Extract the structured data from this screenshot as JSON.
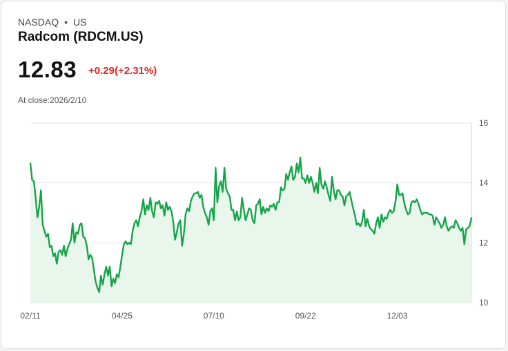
{
  "header": {
    "exchange": "NASDAQ",
    "separator": "•",
    "region": "US",
    "name": "Radcom (RDCM.US)",
    "price": "12.83",
    "change": "+0.29(+2.31%)",
    "close_label": "At close:2026/2/10"
  },
  "colors": {
    "line": "#16a34a",
    "fill": "#e8f6ec",
    "change": "#e02424",
    "grid": "#e4e4e4"
  },
  "chart_data": {
    "type": "area",
    "title": "",
    "xlabel": "",
    "ylabel": "",
    "ylim": [
      10,
      16
    ],
    "yticks": [
      "16",
      "14",
      "12",
      "10"
    ],
    "ytick_values": [
      16,
      14,
      12,
      10
    ],
    "xticks": [
      "02/11",
      "04/25",
      "07/10",
      "09/22",
      "12/03"
    ],
    "xtick_index": [
      0,
      52,
      104,
      156,
      208
    ],
    "grid": true,
    "series": [
      {
        "values": [
          14.65,
          14.1,
          14.05,
          13.5,
          12.85,
          13.2,
          13.75,
          12.6,
          12.4,
          12.2,
          12.3,
          11.85,
          11.9,
          11.55,
          11.65,
          11.3,
          11.7,
          11.75,
          11.6,
          11.9,
          11.55,
          11.8,
          11.95,
          12.1,
          12.65,
          12.0,
          12.35,
          12.3,
          12.6,
          12.65,
          12.2,
          12.15,
          11.9,
          11.45,
          11.6,
          11.5,
          11.1,
          10.7,
          10.5,
          10.35,
          10.9,
          10.6,
          10.95,
          11.2,
          10.9,
          11.2,
          10.55,
          10.8,
          10.65,
          10.95,
          10.85,
          11.2,
          11.6,
          11.95,
          12.05,
          11.95,
          12.0,
          11.95,
          12.4,
          12.65,
          12.75,
          12.55,
          12.85,
          13.05,
          13.45,
          12.95,
          13.25,
          13.1,
          13.5,
          13.05,
          12.85,
          13.35,
          13.3,
          13.4,
          13.15,
          13.25,
          12.9,
          13.35,
          13.1,
          13.2,
          13.05,
          12.7,
          12.1,
          12.35,
          12.65,
          12.75,
          11.9,
          12.3,
          12.95,
          13.15,
          13.05,
          13.4,
          13.55,
          13.65,
          13.65,
          13.7,
          13.5,
          13.6,
          13.2,
          13.0,
          12.85,
          12.6,
          13.05,
          13.15,
          12.75,
          14.5,
          13.35,
          13.9,
          14.05,
          13.7,
          14.5,
          13.8,
          13.65,
          13.55,
          13.1,
          13.1,
          12.75,
          13.05,
          12.75,
          12.85,
          13.5,
          13.1,
          12.75,
          12.95,
          13.15,
          13.1,
          12.75,
          12.65,
          13.25,
          13.3,
          13.45,
          12.95,
          13.2,
          13.0,
          13.15,
          13.05,
          13.25,
          13.2,
          13.3,
          13.1,
          13.35,
          13.35,
          13.85,
          13.75,
          13.8,
          14.3,
          14.1,
          14.35,
          14.55,
          14.1,
          14.2,
          14.65,
          14.35,
          14.85,
          14.15,
          14.15,
          14.0,
          14.25,
          14.0,
          14.2,
          14.0,
          13.7,
          14.0,
          13.65,
          14.5,
          13.95,
          13.8,
          14.05,
          13.85,
          13.6,
          13.4,
          14.2,
          13.75,
          13.45,
          13.75,
          13.75,
          13.6,
          13.55,
          13.25,
          13.55,
          13.6,
          13.7,
          13.4,
          13.15,
          12.9,
          12.6,
          12.65,
          12.55,
          12.7,
          13.1,
          12.55,
          12.8,
          12.55,
          12.45,
          12.4,
          12.3,
          12.65,
          12.85,
          12.5,
          12.95,
          12.7,
          12.85,
          12.8,
          13.0,
          13.1,
          13.0,
          13.05,
          13.4,
          13.95,
          13.6,
          13.6,
          13.65,
          13.3,
          13.1,
          12.95,
          13.0,
          13.35,
          13.4,
          13.35,
          13.45,
          13.3,
          13.1,
          12.95,
          13.0,
          13.0,
          13.0,
          12.95,
          12.95,
          12.9,
          12.6,
          12.85,
          12.75,
          12.65,
          12.5,
          12.6,
          12.85,
          12.55,
          12.4,
          12.5,
          12.55,
          12.5,
          12.75,
          12.65,
          12.5,
          12.4,
          12.5,
          11.95,
          12.45,
          12.5,
          12.55,
          12.83
        ]
      }
    ]
  }
}
